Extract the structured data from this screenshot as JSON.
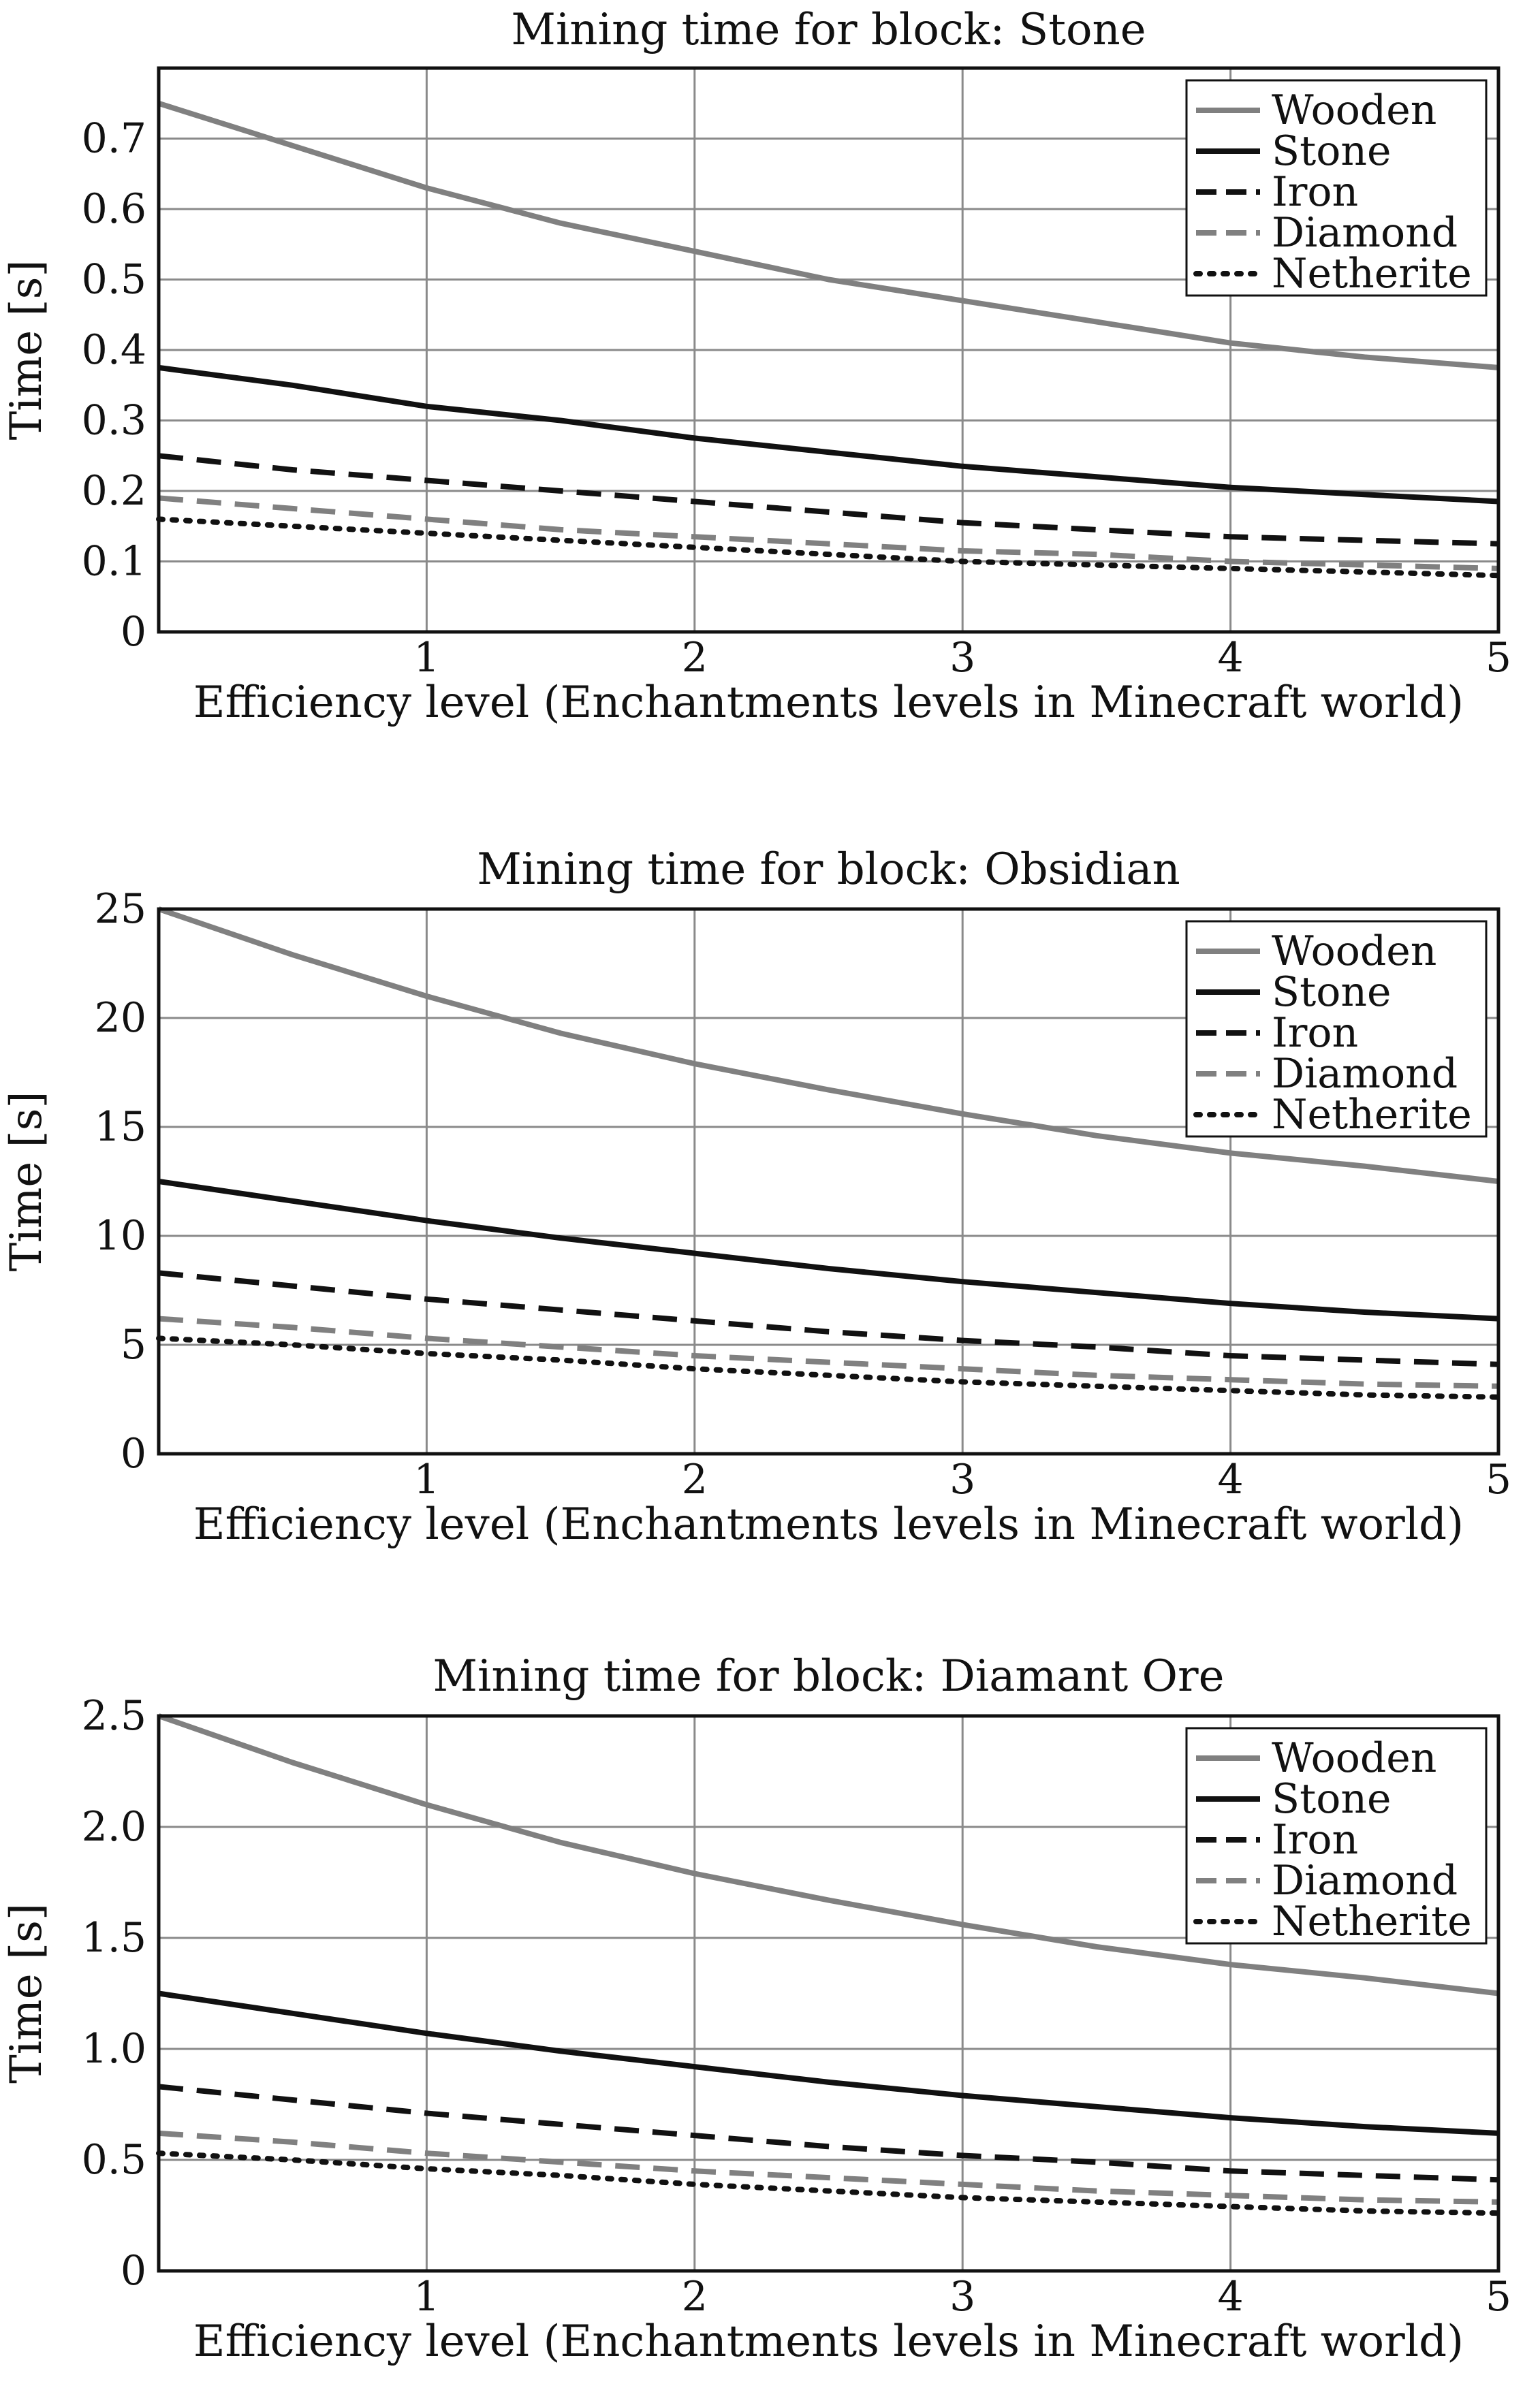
{
  "figure": {
    "series_styles": [
      {
        "name": "Wooden",
        "color": "#808080",
        "dash": "solid"
      },
      {
        "name": "Stone",
        "color": "#111111",
        "dash": "solid"
      },
      {
        "name": "Iron",
        "color": "#111111",
        "dash": "dashed"
      },
      {
        "name": "Diamond",
        "color": "#808080",
        "dash": "dashed"
      },
      {
        "name": "Netherite",
        "color": "#111111",
        "dash": "dotted"
      }
    ]
  },
  "chart_data": [
    {
      "type": "line",
      "title": "Mining time for block: Stone",
      "xlabel": "Efficiency level (Enchantments levels in Minecraft world)",
      "ylabel": "Time [s]",
      "xlim": [
        0,
        5
      ],
      "ylim": [
        0,
        0.8
      ],
      "xticks": [
        1,
        2,
        3,
        4,
        5
      ],
      "xtick_labels": [
        "1",
        "2",
        "3",
        "4",
        "5"
      ],
      "yticks": [
        0,
        0.1,
        0.2,
        0.3,
        0.4,
        0.5,
        0.6,
        0.7
      ],
      "ytick_labels": [
        "0",
        "0.1",
        "0.2",
        "0.3",
        "0.4",
        "0.5",
        "0.6",
        "0.7"
      ],
      "grid": true,
      "legend_position": "top-right",
      "x": [
        0,
        0.5,
        1,
        1.5,
        2,
        2.5,
        3,
        3.5,
        4,
        4.5,
        5
      ],
      "series": [
        {
          "name": "Wooden",
          "values": [
            0.75,
            0.69,
            0.63,
            0.58,
            0.54,
            0.5,
            0.47,
            0.44,
            0.41,
            0.39,
            0.375
          ]
        },
        {
          "name": "Stone",
          "values": [
            0.375,
            0.35,
            0.32,
            0.3,
            0.275,
            0.255,
            0.235,
            0.22,
            0.205,
            0.195,
            0.185
          ]
        },
        {
          "name": "Iron",
          "values": [
            0.25,
            0.23,
            0.215,
            0.2,
            0.185,
            0.17,
            0.155,
            0.145,
            0.135,
            0.13,
            0.125
          ]
        },
        {
          "name": "Diamond",
          "values": [
            0.19,
            0.175,
            0.16,
            0.145,
            0.135,
            0.125,
            0.115,
            0.11,
            0.1,
            0.095,
            0.09
          ]
        },
        {
          "name": "Netherite",
          "values": [
            0.16,
            0.15,
            0.14,
            0.13,
            0.12,
            0.11,
            0.1,
            0.095,
            0.09,
            0.085,
            0.08
          ]
        }
      ]
    },
    {
      "type": "line",
      "title": "Mining time for block: Obsidian",
      "xlabel": "Efficiency level (Enchantments levels in Minecraft world)",
      "ylabel": "Time [s]",
      "xlim": [
        0,
        5
      ],
      "ylim": [
        0,
        25
      ],
      "xticks": [
        1,
        2,
        3,
        4,
        5
      ],
      "xtick_labels": [
        "1",
        "2",
        "3",
        "4",
        "5"
      ],
      "yticks": [
        0,
        5,
        10,
        15,
        20,
        25
      ],
      "ytick_labels": [
        "0",
        "5",
        "10",
        "15",
        "20",
        "25"
      ],
      "grid": true,
      "legend_position": "top-right",
      "x": [
        0,
        0.5,
        1,
        1.5,
        2,
        2.5,
        3,
        3.5,
        4,
        4.5,
        5
      ],
      "series": [
        {
          "name": "Wooden",
          "values": [
            25,
            22.9,
            21,
            19.3,
            17.9,
            16.7,
            15.6,
            14.6,
            13.8,
            13.2,
            12.5
          ]
        },
        {
          "name": "Stone",
          "values": [
            12.5,
            11.6,
            10.7,
            9.9,
            9.2,
            8.5,
            7.9,
            7.4,
            6.9,
            6.5,
            6.2
          ]
        },
        {
          "name": "Iron",
          "values": [
            8.3,
            7.7,
            7.1,
            6.6,
            6.1,
            5.6,
            5.2,
            4.9,
            4.5,
            4.3,
            4.1
          ]
        },
        {
          "name": "Diamond",
          "values": [
            6.2,
            5.8,
            5.3,
            4.9,
            4.5,
            4.2,
            3.9,
            3.6,
            3.4,
            3.2,
            3.1
          ]
        },
        {
          "name": "Netherite",
          "values": [
            5.3,
            5,
            4.6,
            4.3,
            3.9,
            3.6,
            3.3,
            3.1,
            2.9,
            2.7,
            2.6
          ]
        }
      ]
    },
    {
      "type": "line",
      "title": "Mining time for block: Diamant Ore",
      "xlabel": "Efficiency level (Enchantments levels in Minecraft world)",
      "ylabel": "Time [s]",
      "xlim": [
        0,
        5
      ],
      "ylim": [
        0,
        2.5
      ],
      "xticks": [
        1,
        2,
        3,
        4,
        5
      ],
      "xtick_labels": [
        "1",
        "2",
        "3",
        "4",
        "5"
      ],
      "yticks": [
        0,
        0.5,
        1.0,
        1.5,
        2.0,
        2.5
      ],
      "ytick_labels": [
        "0",
        "0.5",
        "1.0",
        "1.5",
        "2.0",
        "2.5"
      ],
      "grid": true,
      "legend_position": "top-right",
      "x": [
        0,
        0.5,
        1,
        1.5,
        2,
        2.5,
        3,
        3.5,
        4,
        4.5,
        5
      ],
      "series": [
        {
          "name": "Wooden",
          "values": [
            2.5,
            2.29,
            2.1,
            1.93,
            1.79,
            1.67,
            1.56,
            1.46,
            1.38,
            1.32,
            1.25
          ]
        },
        {
          "name": "Stone",
          "values": [
            1.25,
            1.16,
            1.07,
            0.99,
            0.92,
            0.85,
            0.79,
            0.74,
            0.69,
            0.65,
            0.62
          ]
        },
        {
          "name": "Iron",
          "values": [
            0.83,
            0.77,
            0.71,
            0.66,
            0.61,
            0.56,
            0.52,
            0.49,
            0.45,
            0.43,
            0.41
          ]
        },
        {
          "name": "Diamond",
          "values": [
            0.62,
            0.58,
            0.53,
            0.49,
            0.45,
            0.42,
            0.39,
            0.36,
            0.34,
            0.32,
            0.31
          ]
        },
        {
          "name": "Netherite",
          "values": [
            0.53,
            0.5,
            0.46,
            0.43,
            0.39,
            0.36,
            0.33,
            0.31,
            0.29,
            0.27,
            0.26
          ]
        }
      ]
    }
  ]
}
